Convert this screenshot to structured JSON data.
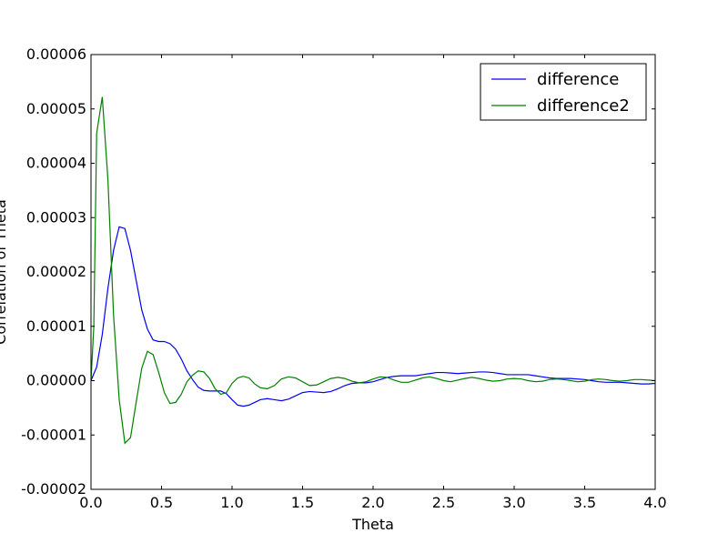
{
  "chart_data": {
    "type": "line",
    "title": "",
    "xlabel": "Theta",
    "ylabel": "Correlation of Theta",
    "xlim": [
      0.0,
      4.0
    ],
    "ylim": [
      -2e-05,
      6e-05
    ],
    "grid": false,
    "legend_position": "top-right",
    "x_ticks": [
      {
        "value": 0.0,
        "label": "0.0"
      },
      {
        "value": 0.5,
        "label": "0.5"
      },
      {
        "value": 1.0,
        "label": "1.0"
      },
      {
        "value": 1.5,
        "label": "1.5"
      },
      {
        "value": 2.0,
        "label": "2.0"
      },
      {
        "value": 2.5,
        "label": "2.5"
      },
      {
        "value": 3.0,
        "label": "3.0"
      },
      {
        "value": 3.5,
        "label": "3.5"
      },
      {
        "value": 4.0,
        "label": "4.0"
      }
    ],
    "y_ticks": [
      {
        "value": -2e-05,
        "label": "-0.00002"
      },
      {
        "value": -1e-05,
        "label": "-0.00001"
      },
      {
        "value": 0.0,
        "label": "0.00000"
      },
      {
        "value": 1e-05,
        "label": "0.00001"
      },
      {
        "value": 2e-05,
        "label": "0.00002"
      },
      {
        "value": 3e-05,
        "label": "0.00003"
      },
      {
        "value": 4e-05,
        "label": "0.00004"
      },
      {
        "value": 5e-05,
        "label": "0.00005"
      },
      {
        "value": 6e-05,
        "label": "0.00006"
      }
    ],
    "series": [
      {
        "name": "difference",
        "color": "#0000ff",
        "x": [
          0.0,
          0.04,
          0.08,
          0.12,
          0.16,
          0.2,
          0.24,
          0.28,
          0.32,
          0.36,
          0.4,
          0.44,
          0.48,
          0.52,
          0.56,
          0.6,
          0.64,
          0.68,
          0.72,
          0.76,
          0.8,
          0.84,
          0.88,
          0.92,
          0.96,
          1.0,
          1.04,
          1.08,
          1.12,
          1.16,
          1.2,
          1.25,
          1.3,
          1.35,
          1.4,
          1.45,
          1.5,
          1.55,
          1.6,
          1.65,
          1.7,
          1.75,
          1.8,
          1.85,
          1.9,
          1.95,
          2.0,
          2.05,
          2.1,
          2.15,
          2.2,
          2.25,
          2.3,
          2.35,
          2.4,
          2.45,
          2.5,
          2.55,
          2.6,
          2.65,
          2.7,
          2.75,
          2.8,
          2.85,
          2.9,
          2.95,
          3.0,
          3.05,
          3.1,
          3.15,
          3.2,
          3.25,
          3.3,
          3.35,
          3.4,
          3.45,
          3.5,
          3.55,
          3.6,
          3.65,
          3.7,
          3.75,
          3.8,
          3.85,
          3.9,
          3.95,
          4.0
        ],
        "y": [
          0.0,
          2.5e-06,
          8.5e-06,
          1.7e-05,
          2.4e-05,
          2.83e-05,
          2.8e-05,
          2.4e-05,
          1.85e-05,
          1.3e-05,
          9.5e-06,
          7.5e-06,
          7.2e-06,
          7.2e-06,
          6.8e-06,
          5.8e-06,
          4e-06,
          1.8e-06,
          2e-07,
          -1.2e-06,
          -1.8e-06,
          -1.9e-06,
          -1.9e-06,
          -1.9e-06,
          -2.4e-06,
          -3.5e-06,
          -4.5e-06,
          -4.7e-06,
          -4.5e-06,
          -4e-06,
          -3.5e-06,
          -3.3e-06,
          -3.5e-06,
          -3.7e-06,
          -3.4e-06,
          -2.8e-06,
          -2.2e-06,
          -2e-06,
          -2.1e-06,
          -2.2e-06,
          -2e-06,
          -1.5e-06,
          -9e-07,
          -5e-07,
          -4e-07,
          -4e-07,
          -2e-07,
          2e-07,
          6e-07,
          8e-07,
          9e-07,
          9e-07,
          9e-07,
          1.1e-06,
          1.3e-06,
          1.5e-06,
          1.5e-06,
          1.4e-06,
          1.3e-06,
          1.4e-06,
          1.5e-06,
          1.6e-06,
          1.6e-06,
          1.5e-06,
          1.3e-06,
          1.1e-06,
          1.1e-06,
          1.1e-06,
          1.1e-06,
          9e-07,
          7e-07,
          5e-07,
          4e-07,
          4e-07,
          4e-07,
          3e-07,
          2e-07,
          0.0,
          -2e-07,
          -3e-07,
          -3e-07,
          -3e-07,
          -4e-07,
          -5e-07,
          -6e-07,
          -6e-07,
          -5e-07
        ]
      },
      {
        "name": "difference2",
        "color": "#008000",
        "x": [
          0.0,
          0.02,
          0.04,
          0.08,
          0.12,
          0.16,
          0.2,
          0.24,
          0.28,
          0.32,
          0.36,
          0.4,
          0.44,
          0.48,
          0.52,
          0.56,
          0.6,
          0.64,
          0.68,
          0.72,
          0.76,
          0.8,
          0.84,
          0.88,
          0.92,
          0.96,
          1.0,
          1.04,
          1.08,
          1.12,
          1.16,
          1.2,
          1.25,
          1.3,
          1.35,
          1.4,
          1.45,
          1.5,
          1.55,
          1.6,
          1.65,
          1.7,
          1.75,
          1.8,
          1.85,
          1.9,
          1.95,
          2.0,
          2.05,
          2.1,
          2.15,
          2.2,
          2.25,
          2.3,
          2.35,
          2.4,
          2.45,
          2.5,
          2.55,
          2.6,
          2.65,
          2.7,
          2.75,
          2.8,
          2.85,
          2.9,
          2.95,
          3.0,
          3.05,
          3.1,
          3.15,
          3.2,
          3.25,
          3.3,
          3.35,
          3.4,
          3.45,
          3.5,
          3.55,
          3.6,
          3.65,
          3.7,
          3.75,
          3.8,
          3.85,
          3.9,
          3.95,
          4.0
        ],
        "y": [
          0.0,
          1e-05,
          4.55e-05,
          5.22e-05,
          3.7e-05,
          1.2e-05,
          -3.5e-06,
          -1.15e-05,
          -1.05e-05,
          -4e-06,
          2.3e-06,
          5.4e-06,
          4.8e-06,
          1.5e-06,
          -2.2e-06,
          -4.2e-06,
          -4e-06,
          -2.5e-06,
          -2e-07,
          1e-06,
          1.8e-06,
          1.6e-06,
          4e-07,
          -1.5e-06,
          -2.5e-06,
          -2.2e-06,
          -5e-07,
          5e-07,
          8e-07,
          5e-07,
          -6e-07,
          -1.3e-06,
          -1.5e-06,
          -9e-07,
          3e-07,
          7e-07,
          5e-07,
          -2e-07,
          -9e-07,
          -8e-07,
          -2e-07,
          4e-07,
          6e-07,
          4e-07,
          -1e-07,
          -4e-07,
          -2e-07,
          3e-07,
          7e-07,
          6e-07,
          1e-07,
          -3e-07,
          -3e-07,
          1e-07,
          5e-07,
          7e-07,
          4e-07,
          0.0,
          -2e-07,
          1e-07,
          4e-07,
          6e-07,
          4e-07,
          1e-07,
          -1e-07,
          0.0,
          3e-07,
          4e-07,
          3e-07,
          0.0,
          -2e-07,
          -1e-07,
          2e-07,
          3e-07,
          2e-07,
          0.0,
          -2e-07,
          -1e-07,
          2e-07,
          3e-07,
          2e-07,
          0.0,
          -1e-07,
          0.0,
          2e-07,
          2e-07,
          1e-07,
          0.0
        ]
      }
    ]
  }
}
